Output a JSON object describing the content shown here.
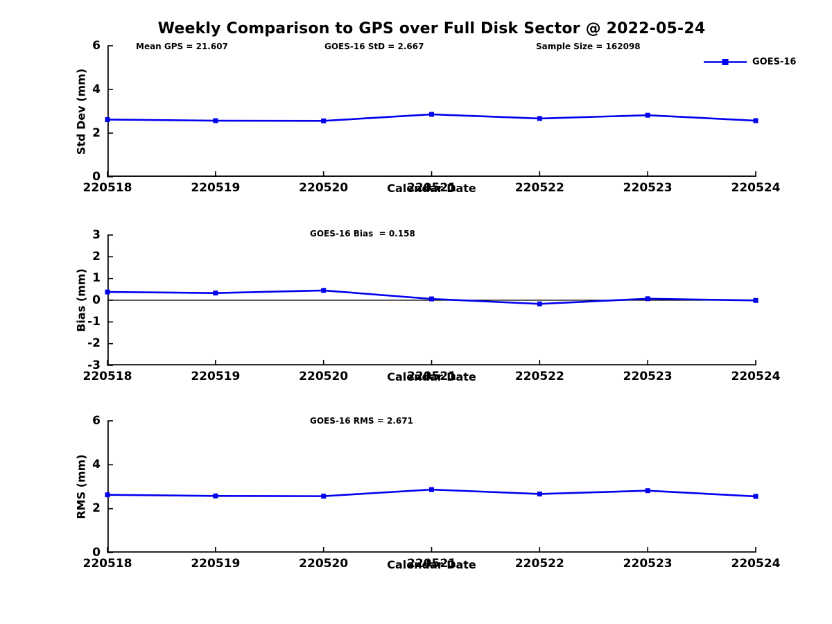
{
  "figure": {
    "title": "Weekly Comparison to GPS over Full Disk Sector @ 2022-05-24"
  },
  "colors": {
    "series": "#0000ee",
    "axis": "#000000",
    "text": "#000000",
    "background": "#ffffff"
  },
  "legend": {
    "label": "GOES-16",
    "marker": "filled-square-on-line"
  },
  "chart_data": [
    {
      "id": "stddev",
      "type": "line",
      "ylabel": "Std Dev (mm)",
      "xlabel": "Calendar Date",
      "ylim": [
        0,
        6
      ],
      "yticks": [
        0,
        2,
        4,
        6
      ],
      "grid": false,
      "legend_position": "top-right",
      "annotations": [
        {
          "text": "Mean GPS = 21.607",
          "x": 41,
          "y": -6
        },
        {
          "text": "GOES-16 StD = 2.667",
          "x": 313,
          "y": -6
        },
        {
          "text": "Sample Size = 162098",
          "x": 618,
          "y": -6
        }
      ],
      "categories": [
        "220518",
        "220519",
        "220520",
        "220521",
        "220522",
        "220523",
        "220524"
      ],
      "series": [
        {
          "name": "GOES-16",
          "values": [
            2.62,
            2.57,
            2.56,
            2.86,
            2.67,
            2.82,
            2.57
          ]
        }
      ]
    },
    {
      "id": "bias",
      "type": "line",
      "ylabel": "Bias (mm)",
      "xlabel": "Calendar Date",
      "ylim": [
        -3,
        3
      ],
      "yticks": [
        3,
        2,
        1,
        0,
        -1,
        -2,
        -3
      ],
      "grid": false,
      "zero_line": true,
      "annotations": [
        {
          "text": "GOES-16 Bias  = 0.158",
          "x": 292,
          "y": -9
        }
      ],
      "categories": [
        "220518",
        "220519",
        "220520",
        "220521",
        "220522",
        "220523",
        "220524"
      ],
      "series": [
        {
          "name": "GOES-16",
          "values": [
            0.38,
            0.33,
            0.45,
            0.06,
            -0.17,
            0.07,
            -0.01
          ]
        }
      ]
    },
    {
      "id": "rms",
      "type": "line",
      "ylabel": "RMS (mm)",
      "xlabel": "Calendar Date",
      "ylim": [
        0,
        6
      ],
      "yticks": [
        0,
        2,
        4,
        6
      ],
      "grid": false,
      "annotations": [
        {
          "text": "GOES-16 RMS = 2.671",
          "x": 292,
          "y": -7
        }
      ],
      "categories": [
        "220518",
        "220519",
        "220520",
        "220521",
        "220522",
        "220523",
        "220524"
      ],
      "series": [
        {
          "name": "GOES-16",
          "values": [
            2.63,
            2.58,
            2.57,
            2.87,
            2.67,
            2.82,
            2.56
          ]
        }
      ]
    }
  ]
}
